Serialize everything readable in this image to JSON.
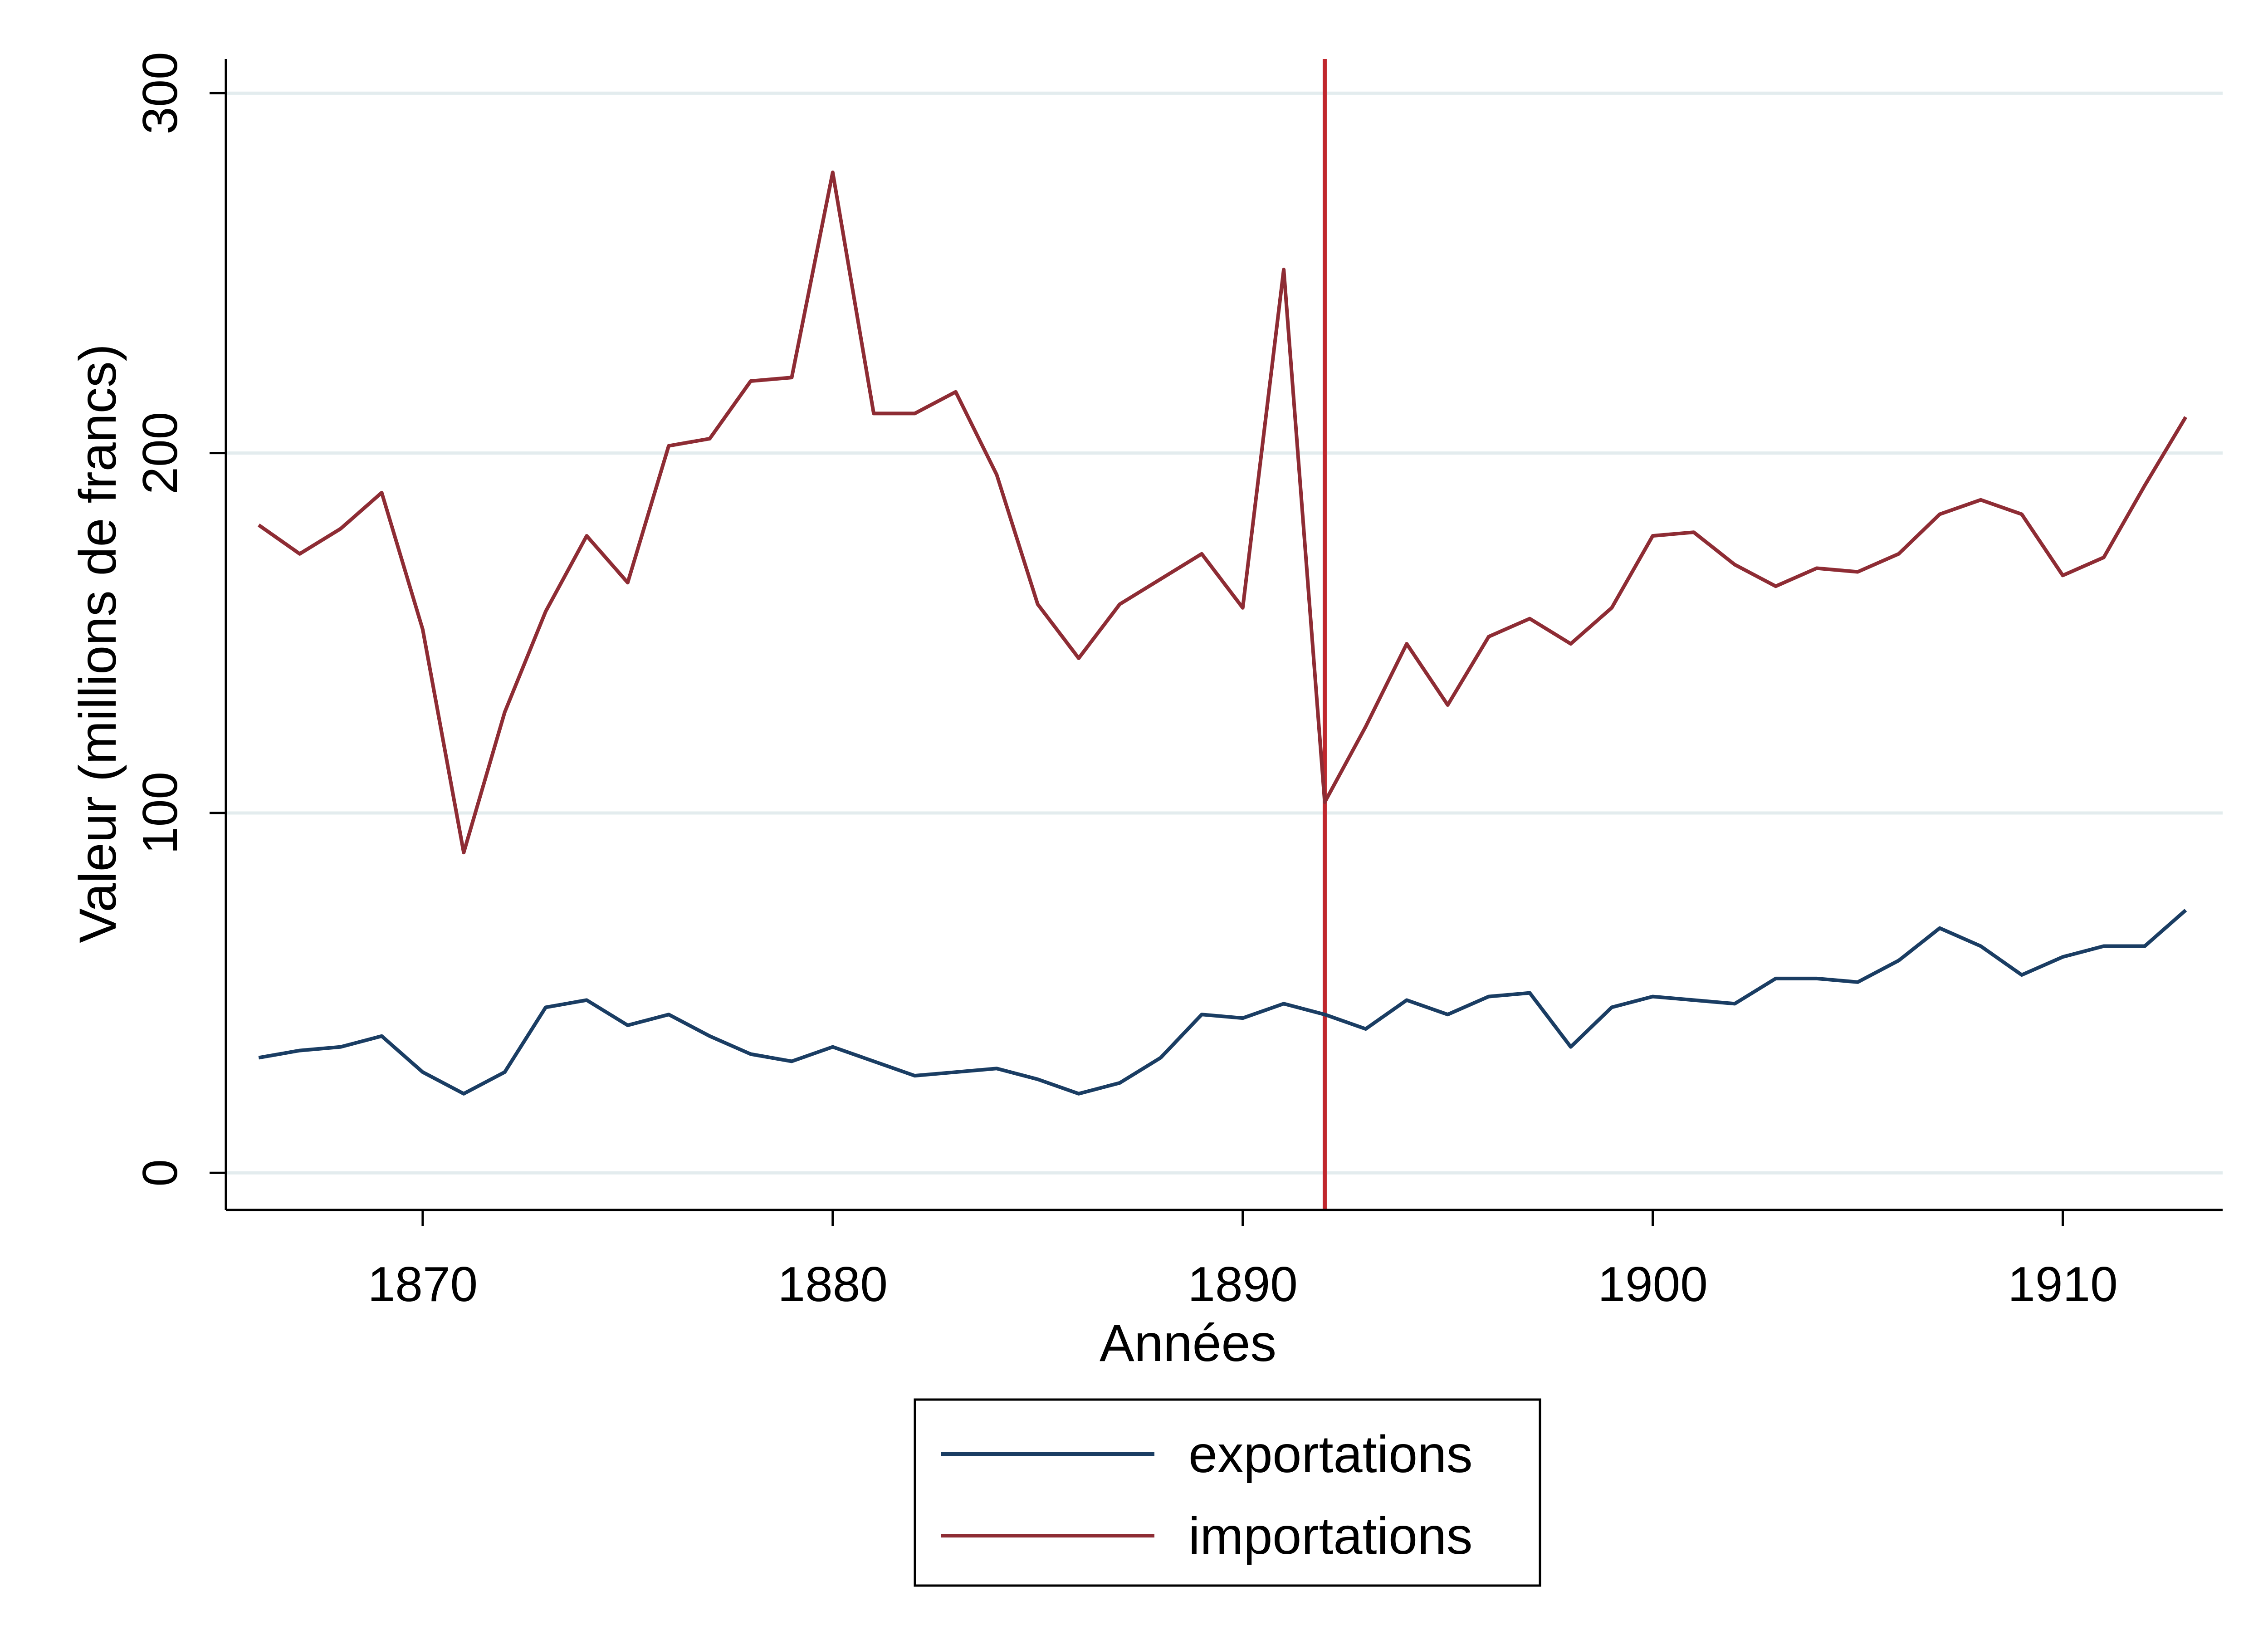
{
  "chart_data": {
    "type": "line",
    "title": "",
    "xlabel": "Années",
    "ylabel": "Valeur (millions de francs)",
    "xlim": [
      1865.2,
      1913.9
    ],
    "ylim": [
      -10.3,
      309.5
    ],
    "x_ticks": [
      1870,
      1880,
      1890,
      1900,
      1910
    ],
    "y_ticks": [
      0,
      100,
      200,
      300
    ],
    "grid": "horizontal",
    "legend_position": "bottom-center",
    "reference_line": {
      "x": 1892,
      "color": "#c0272d"
    },
    "x": [
      1866,
      1867,
      1868,
      1869,
      1870,
      1871,
      1872,
      1873,
      1874,
      1875,
      1876,
      1877,
      1878,
      1879,
      1880,
      1881,
      1882,
      1883,
      1884,
      1885,
      1886,
      1887,
      1888,
      1889,
      1890,
      1891,
      1892,
      1893,
      1894,
      1895,
      1896,
      1897,
      1898,
      1899,
      1900,
      1901,
      1902,
      1903,
      1904,
      1905,
      1906,
      1907,
      1908,
      1909,
      1910,
      1911,
      1912,
      1913
    ],
    "series": [
      {
        "name": "exportations",
        "color": "#1a3d63",
        "values": [
          32,
          34,
          35,
          38,
          28,
          22,
          28,
          46,
          48,
          41,
          44,
          38,
          33,
          31,
          35,
          31,
          27,
          28,
          29,
          26,
          22,
          25,
          32,
          44,
          43,
          47,
          44,
          40,
          48,
          44,
          49,
          50,
          35,
          46,
          49,
          48,
          47,
          54,
          54,
          53,
          59,
          68,
          63,
          55,
          60,
          63,
          63,
          73
        ]
      },
      {
        "name": "importations",
        "color": "#8e2c34",
        "values": [
          180,
          172,
          179,
          189,
          151,
          89,
          128,
          156,
          177,
          164,
          202,
          204,
          220,
          221,
          278,
          211,
          211,
          217,
          194,
          158,
          143,
          158,
          165,
          172,
          157,
          251,
          103,
          124,
          147,
          130,
          149,
          154,
          147,
          157,
          177,
          178,
          169,
          163,
          168,
          167,
          172,
          183,
          187,
          183,
          166,
          171,
          191,
          210
        ]
      }
    ]
  }
}
